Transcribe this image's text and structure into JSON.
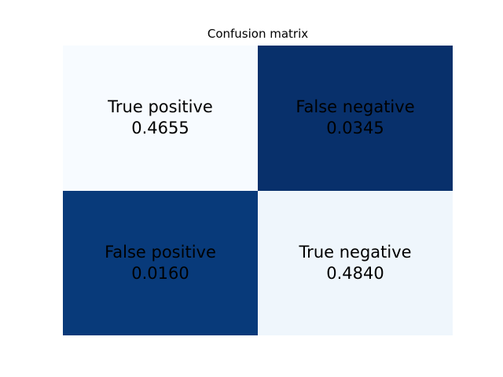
{
  "chart_data": {
    "type": "heatmap",
    "title": "Confusion matrix",
    "xlabel": "",
    "ylabel": "",
    "rows": 2,
    "cols": 2,
    "cells": [
      {
        "row": 0,
        "col": 0,
        "label": "True positive",
        "value": 0.4655,
        "value_text": "0.4655",
        "color": "#f7fbff"
      },
      {
        "row": 0,
        "col": 1,
        "label": "False negative",
        "value": 0.0345,
        "value_text": "0.0345",
        "color": "#08306b"
      },
      {
        "row": 1,
        "col": 0,
        "label": "False positive",
        "value": 0.016,
        "value_text": "0.0160",
        "color": "#083a7a"
      },
      {
        "row": 1,
        "col": 1,
        "label": "True negative",
        "value": 0.484,
        "value_text": "0.4840",
        "color": "#eff6fc"
      }
    ],
    "colormap": "Blues",
    "grid": false,
    "legend": "none"
  }
}
